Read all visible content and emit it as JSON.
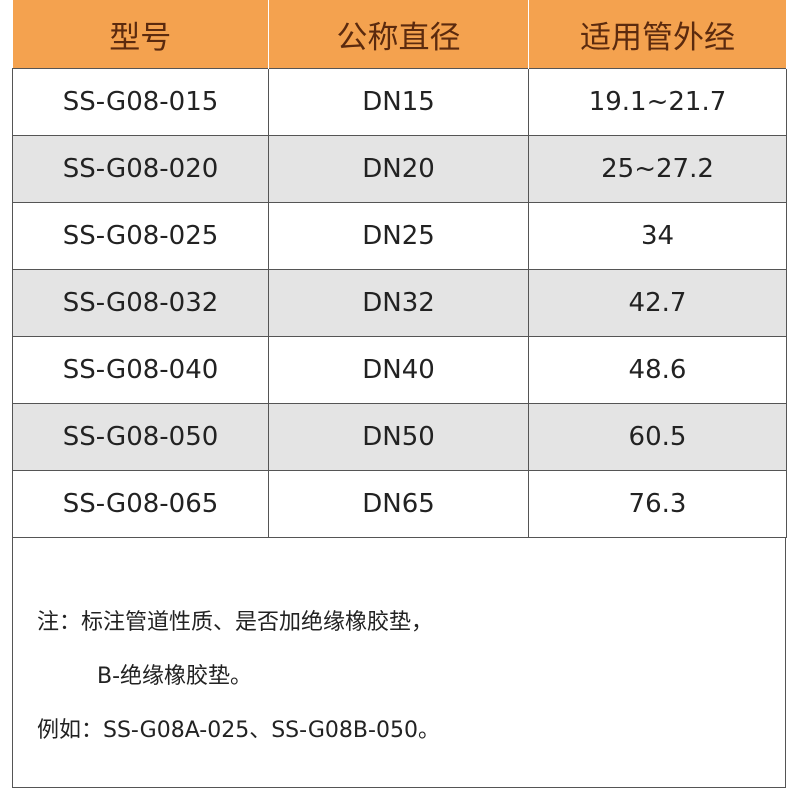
{
  "table": {
    "header": [
      "型号",
      "公称直径",
      "适用管外经"
    ],
    "rows": [
      [
        "SS-G08-015",
        "DN15",
        "19.1~21.7"
      ],
      [
        "SS-G08-020",
        "DN20",
        "25~27.2"
      ],
      [
        "SS-G08-025",
        "DN25",
        "34"
      ],
      [
        "SS-G08-032",
        "DN32",
        "42.7"
      ],
      [
        "SS-G08-040",
        "DN40",
        "48.6"
      ],
      [
        "SS-G08-050",
        "DN50",
        "60.5"
      ],
      [
        "SS-G08-065",
        "DN65",
        "76.3"
      ]
    ]
  },
  "note": {
    "lines": [
      "注：标注管道性质、是否加绝缘橡胶垫，",
      "B-绝缘橡胶垫。",
      "例如：SS-G08A-025、SS-G08B-050。"
    ]
  }
}
